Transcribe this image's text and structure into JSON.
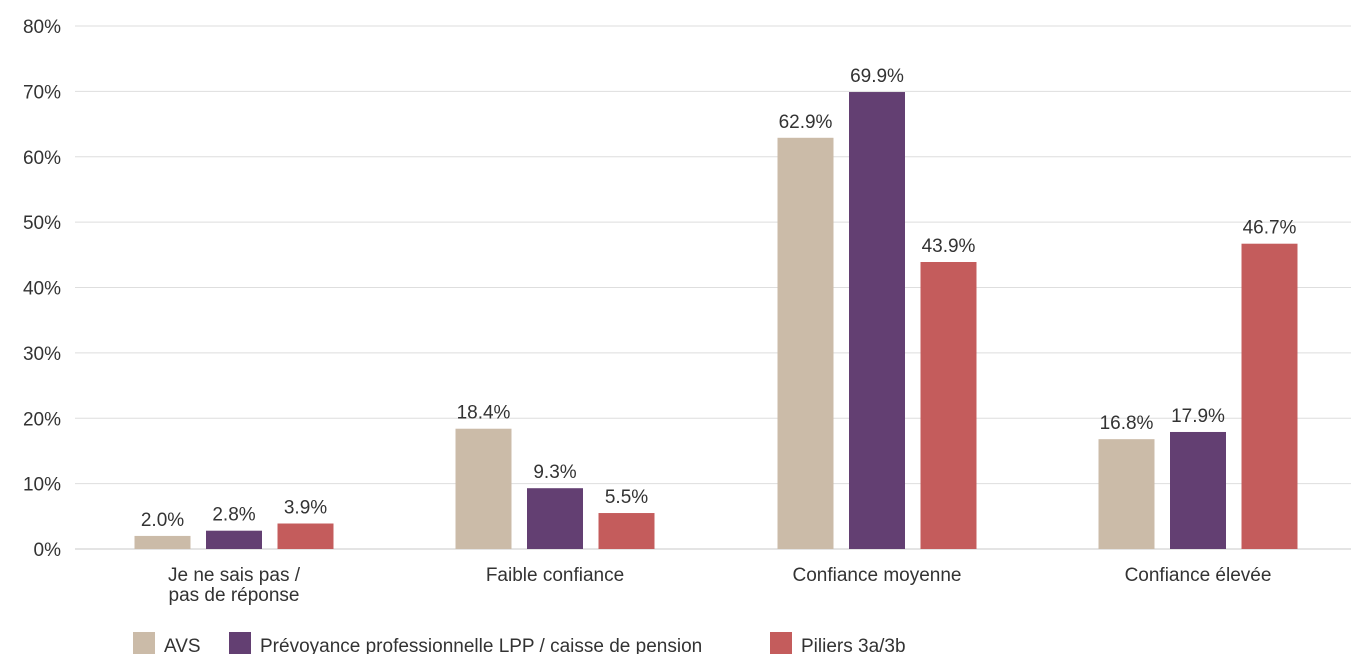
{
  "chart_data": {
    "type": "bar",
    "categories": [
      [
        "Je ne sais pas /",
        "pas de réponse"
      ],
      [
        "Faible confiance"
      ],
      [
        "Confiance moyenne"
      ],
      [
        "Confiance élevée"
      ]
    ],
    "series": [
      {
        "name": "AVS",
        "color": "#cbbba8",
        "values": [
          2.0,
          18.4,
          62.9,
          16.8
        ],
        "labels": [
          "2.0%",
          "18.4%",
          "62.9%",
          "16.8%"
        ]
      },
      {
        "name": "Prévoyance professionnelle LPP / caisse de pension",
        "color": "#633f72",
        "values": [
          2.8,
          9.3,
          69.9,
          17.9
        ],
        "labels": [
          "2.8%",
          "9.3%",
          "69.9%",
          "17.9%"
        ]
      },
      {
        "name": "Piliers 3a/3b",
        "color": "#c45c5c",
        "values": [
          3.9,
          5.5,
          43.9,
          46.7
        ],
        "labels": [
          "3.9%",
          "5.5%",
          "43.9%",
          "46.7%"
        ]
      }
    ],
    "ylim": [
      0,
      80
    ],
    "yticks": [
      0,
      10,
      20,
      30,
      40,
      50,
      60,
      70,
      80
    ],
    "ytick_labels": [
      "0%",
      "10%",
      "20%",
      "30%",
      "40%",
      "50%",
      "60%",
      "70%",
      "80%"
    ],
    "grid": true,
    "legend_position": "bottom-left",
    "title": "",
    "xlabel": "",
    "ylabel": ""
  }
}
